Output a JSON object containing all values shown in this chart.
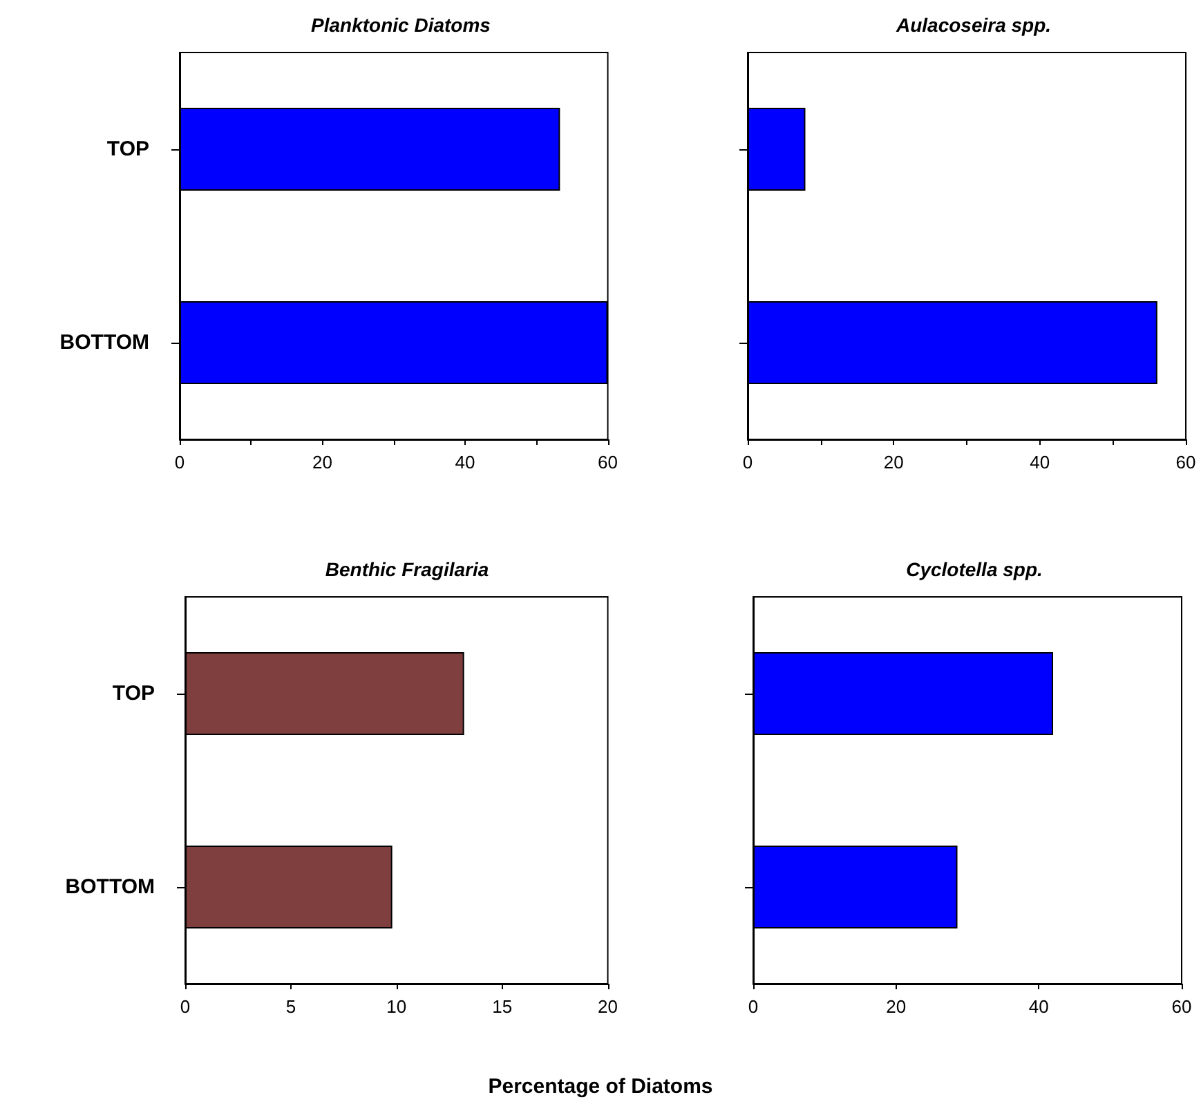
{
  "chart_data": [
    {
      "type": "bar",
      "orientation": "horizontal",
      "title": "Planktonic Diatoms",
      "categories": [
        "TOP",
        "BOTTOM"
      ],
      "values": [
        53.3,
        60
      ],
      "color": "#0000ff",
      "xlim": [
        0,
        60
      ],
      "xticks": [
        0,
        {
          "value": 10,
          "label": null
        },
        20,
        {
          "value": 30,
          "label": null
        },
        40,
        {
          "value": 50,
          "label": null
        },
        60
      ]
    },
    {
      "type": "bar",
      "orientation": "horizontal",
      "title": "Aulacoseira spp.",
      "categories": [
        null,
        null
      ],
      "values": [
        7.9,
        56.1
      ],
      "color": "#0000ff",
      "xlim": [
        0,
        60
      ],
      "xticks": [
        0,
        {
          "value": 10,
          "label": null
        },
        20,
        {
          "value": 30,
          "label": null
        },
        40,
        {
          "value": 50,
          "label": null
        },
        60
      ]
    },
    {
      "type": "bar",
      "orientation": "horizontal",
      "title": "Benthic Fragilaria",
      "xlabel": "Percentage of Diatoms",
      "categories": [
        "TOP",
        "BOTTOM"
      ],
      "values": [
        13.2,
        9.8
      ],
      "color": "#7f3f3f",
      "xlim": [
        0,
        20
      ],
      "xticks": [
        0,
        5,
        10,
        15,
        20
      ]
    },
    {
      "type": "bar",
      "orientation": "horizontal",
      "title": "Cyclotella spp.",
      "categories": [
        null,
        null
      ],
      "values": [
        42,
        28.6
      ],
      "color": "#0000ff",
      "xlim": [
        0,
        60
      ],
      "xticks": [
        0,
        20,
        40,
        60
      ]
    }
  ]
}
